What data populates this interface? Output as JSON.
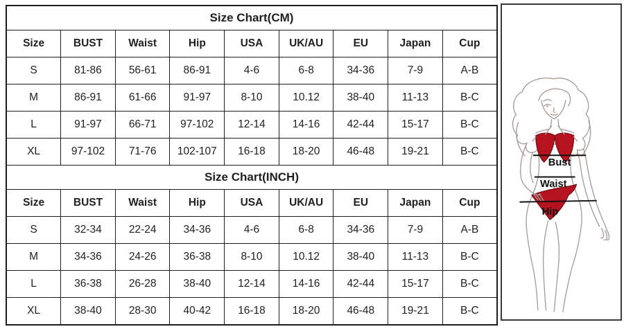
{
  "page": {
    "background": "#ffffff",
    "grid_border_color": "#1c1c1c"
  },
  "tables": [
    {
      "title": "Size Chart(CM)",
      "columns": [
        "Size",
        "BUST",
        "Waist",
        "Hip",
        "USA",
        "UK/AU",
        "EU",
        "Japan",
        "Cup"
      ],
      "rows": [
        [
          "S",
          "81-86",
          "56-61",
          "86-91",
          "4-6",
          "6-8",
          "34-36",
          "7-9",
          "A-B"
        ],
        [
          "M",
          "86-91",
          "61-66",
          "91-97",
          "8-10",
          "10.12",
          "38-40",
          "11-13",
          "B-C"
        ],
        [
          "L",
          "91-97",
          "66-71",
          "97-102",
          "12-14",
          "14-16",
          "42-44",
          "15-17",
          "B-C"
        ],
        [
          "XL",
          "97-102",
          "71-76",
          "102-107",
          "16-18",
          "18-20",
          "46-48",
          "19-21",
          "B-C"
        ]
      ]
    },
    {
      "title": "Size Chart(INCH)",
      "columns": [
        "Size",
        "BUST",
        "Waist",
        "Hip",
        "USA",
        "UK/AU",
        "EU",
        "Japan",
        "Cup"
      ],
      "rows": [
        [
          "S",
          "32-34",
          "22-24",
          "34-36",
          "4-6",
          "6-8",
          "34-36",
          "7-9",
          "A-B"
        ],
        [
          "M",
          "34-36",
          "24-26",
          "36-38",
          "8-10",
          "10.12",
          "38-40",
          "11-13",
          "B-C"
        ],
        [
          "L",
          "36-38",
          "26-28",
          "38-40",
          "12-14",
          "14-16",
          "42-44",
          "15-17",
          "B-C"
        ],
        [
          "XL",
          "38-40",
          "28-30",
          "40-42",
          "16-18",
          "18-20",
          "46-48",
          "19-21",
          "B-C"
        ]
      ]
    }
  ],
  "figure": {
    "labels": {
      "bust": "Bust",
      "waist": "Waist",
      "hip": "Hip"
    },
    "colors": {
      "bikini": "#b5131f",
      "bikini_outline": "#7f0d15",
      "body_outline": "#a79d97",
      "measure_line": "#111111"
    }
  }
}
